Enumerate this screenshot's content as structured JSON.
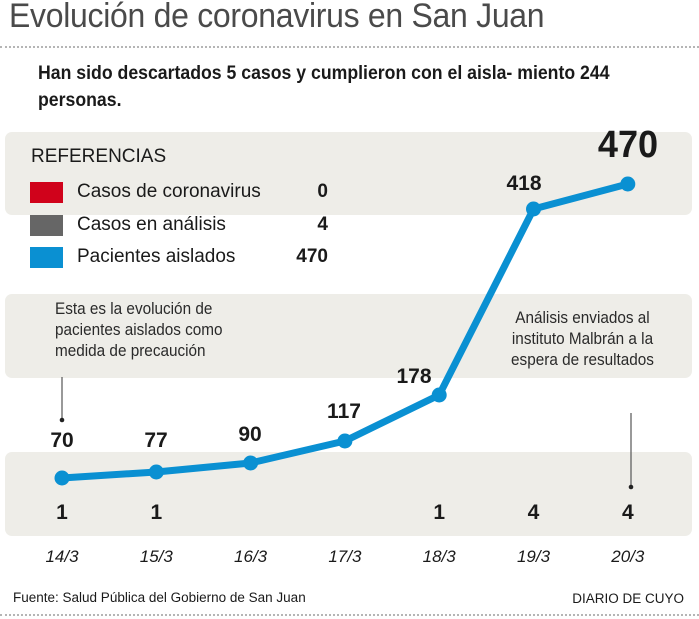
{
  "header": {
    "title": "Evolución de coronavirus en San Juan",
    "subtitle": "Han sido descartados 5 casos y cumplieron con el aisla- miento 244 personas."
  },
  "legend": {
    "title": "REFERENCIAS",
    "items": [
      {
        "label": "Casos de coronavirus",
        "value": "0",
        "color": "#d0021b"
      },
      {
        "label": "Casos en análisis",
        "value": "4",
        "color": "#666666"
      },
      {
        "label": "Pacientes aislados",
        "value": "470",
        "color": "#0a90d2"
      }
    ]
  },
  "notes": {
    "left": "Esta es la evolución de pacientes aislados como medida de precaución",
    "right": "Análisis enviados al instituto Malbrán a la espera de resultados"
  },
  "footer": {
    "source": "Fuente: Salud Pública del Gobierno de San Juan",
    "credit": "DIARIO DE CUYO"
  },
  "chart_data": {
    "type": "line",
    "title": "Evolución de coronavirus en San Juan",
    "xlabel": "",
    "ylabel": "",
    "categories": [
      "14/3",
      "15/3",
      "16/3",
      "17/3",
      "18/3",
      "19/3",
      "20/3"
    ],
    "series": [
      {
        "name": "Pacientes aislados",
        "color": "#0a90d2",
        "values": [
          70,
          77,
          90,
          117,
          178,
          418,
          470
        ]
      },
      {
        "name": "Casos en análisis",
        "color": "#666666",
        "values": [
          1,
          1,
          null,
          null,
          1,
          4,
          4
        ]
      }
    ],
    "ylim": [
      0,
      500
    ],
    "grid": false,
    "legend_position": "top-left"
  }
}
